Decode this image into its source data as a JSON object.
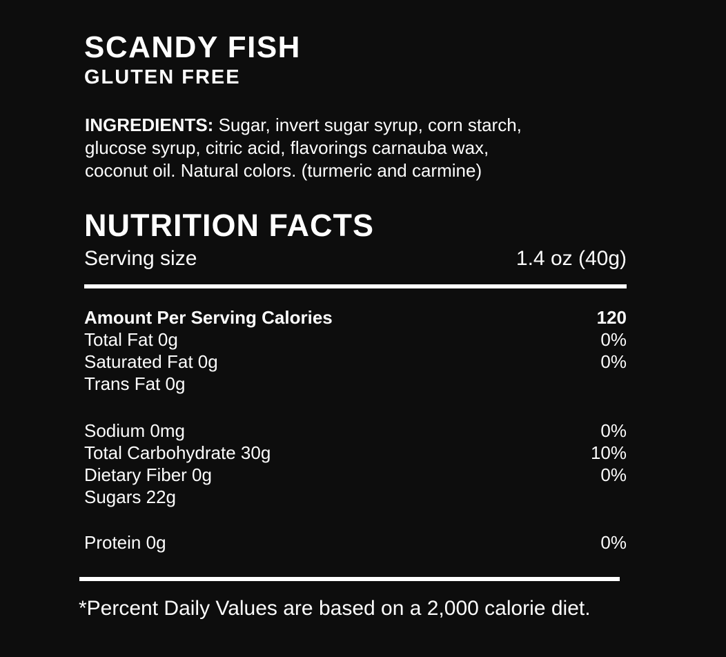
{
  "theme": {
    "background": "#0d0d0d",
    "text": "#fcfcfc",
    "rule_color": "#ffffff"
  },
  "header": {
    "title": "SCANDY FISH",
    "subtitle": "GLUTEN FREE"
  },
  "ingredients": {
    "label": "INGREDIENTS:",
    "lines": [
      " Sugar, invert sugar syrup, corn starch,",
      "glucose syrup, citric acid, flavorings carnauba wax,",
      "coconut oil. Natural colors. (turmeric and carmine)"
    ]
  },
  "nutrition_facts": {
    "title": "NUTRITION FACTS",
    "serving_size": {
      "label": "Serving size",
      "value": "1.4 oz (40g)"
    },
    "rows": [
      {
        "label": "Amount Per Serving Calories",
        "value": "120"
      },
      {
        "label": "Total Fat 0g",
        "value": "0%"
      },
      {
        "label": "Saturated Fat 0g",
        "value": "0%"
      },
      {
        "label": "Trans Fat 0g",
        "value": ""
      },
      {
        "label": "Sodium 0mg",
        "value": "0%"
      },
      {
        "label": "Total Carbohydrate 30g",
        "value": "10%"
      },
      {
        "label": "Dietary Fiber 0g",
        "value": "0%"
      },
      {
        "label": "Sugars 22g",
        "value": ""
      },
      {
        "label": "Protein 0g",
        "value": "0%"
      }
    ],
    "footnote": "*Percent Daily Values are based on a 2,000 calorie diet."
  }
}
